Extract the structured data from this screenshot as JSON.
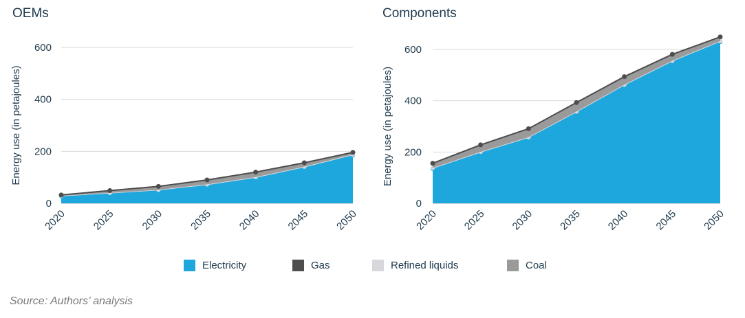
{
  "chart_data": [
    {
      "type": "area",
      "title": "OEMs",
      "ylabel": "Energy use (in petajoules)",
      "ylim": [
        0,
        600
      ],
      "yticks": [
        0,
        200,
        400,
        600
      ],
      "x": [
        2020,
        2025,
        2030,
        2035,
        2040,
        2045,
        2050
      ],
      "grid": true,
      "stacked": true,
      "series": [
        {
          "name": "Electricity",
          "values": [
            27,
            38,
            50,
            70,
            98,
            138,
            185
          ],
          "color": "#1ea7dd"
        },
        {
          "name": "Refined liquids",
          "values": [
            2,
            2,
            2,
            3,
            3,
            3,
            3
          ],
          "color": "#d7d7dc"
        },
        {
          "name": "Coal",
          "values": [
            3,
            9,
            13,
            17,
            19,
            15,
            8
          ],
          "color": "#9a9a9a"
        }
      ],
      "total_line": {
        "name": "Gas",
        "values": [
          32,
          49,
          65,
          90,
          120,
          156,
          196
        ],
        "color": "#4d4d4d"
      }
    },
    {
      "type": "area",
      "title": "Components",
      "ylabel": "Energy use (in petajoules)",
      "ylim": [
        0,
        600
      ],
      "yticks": [
        0,
        200,
        400,
        600
      ],
      "x": [
        2020,
        2025,
        2030,
        2035,
        2040,
        2045,
        2050
      ],
      "grid": true,
      "stacked": true,
      "series": [
        {
          "name": "Electricity",
          "values": [
            135,
            198,
            255,
            355,
            460,
            553,
            630
          ],
          "color": "#1ea7dd"
        },
        {
          "name": "Refined liquids",
          "values": [
            3,
            3,
            3,
            3,
            3,
            3,
            3
          ],
          "color": "#d7d7dc"
        },
        {
          "name": "Coal",
          "values": [
            18,
            27,
            33,
            35,
            31,
            25,
            16
          ],
          "color": "#9a9a9a"
        }
      ],
      "total_line": {
        "name": "Gas",
        "values": [
          156,
          228,
          291,
          393,
          494,
          581,
          649
        ],
        "color": "#4d4d4d"
      }
    }
  ],
  "legend": {
    "items": [
      {
        "label": "Electricity",
        "color": "#1ea7dd"
      },
      {
        "label": "Gas",
        "color": "#4d4d4d"
      },
      {
        "label": "Refined liquids",
        "color": "#d7d7dc"
      },
      {
        "label": "Coal",
        "color": "#9a9a9a"
      }
    ]
  },
  "footer": {
    "source": "Source: Authors’ analysis"
  }
}
